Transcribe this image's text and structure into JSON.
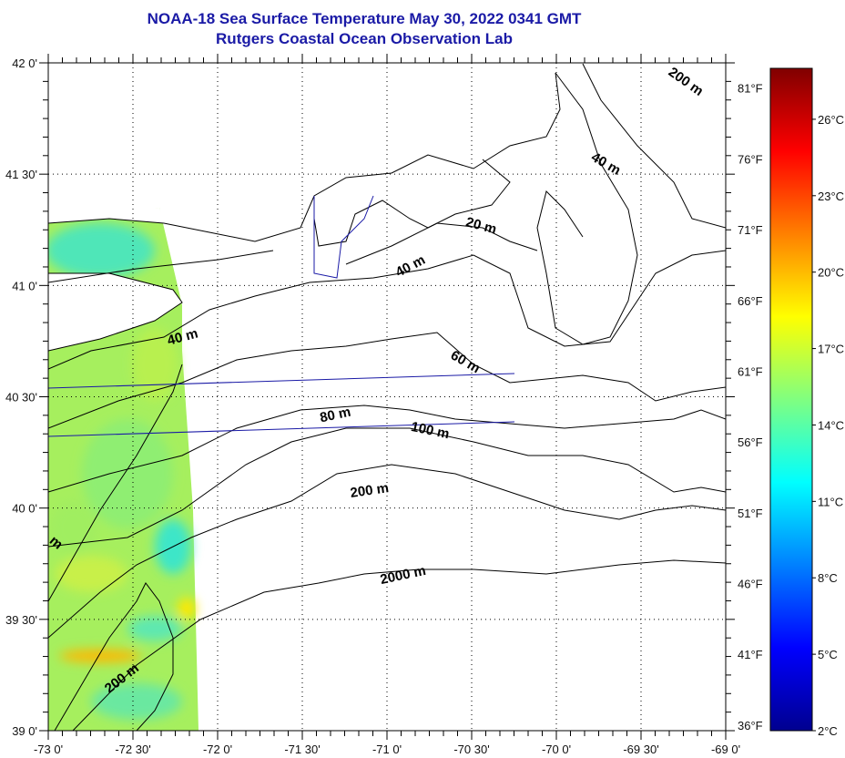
{
  "title": {
    "line1": "NOAA-18 Sea Surface Temperature May 30, 2022 0341 GMT",
    "line2": "Rutgers Coastal Ocean Observation Lab"
  },
  "map": {
    "lon_range": [
      -73,
      -69
    ],
    "lat_range": [
      39,
      42
    ],
    "lon_ticks": [
      {
        "value": -73,
        "label": "-73 0'"
      },
      {
        "value": -72.5,
        "label": "-72 30'"
      },
      {
        "value": -72,
        "label": "-72 0'"
      },
      {
        "value": -71.5,
        "label": "-71 30'"
      },
      {
        "value": -71,
        "label": "-71 0'"
      },
      {
        "value": -70.5,
        "label": "-70 30'"
      },
      {
        "value": -70,
        "label": "-70 0'"
      },
      {
        "value": -69.5,
        "label": "-69 30'"
      },
      {
        "value": -69,
        "label": "-69 0'"
      }
    ],
    "lat_ticks": [
      {
        "value": 42,
        "label": "42 0'"
      },
      {
        "value": 41.5,
        "label": "41 30'"
      },
      {
        "value": 41,
        "label": "41 0'"
      },
      {
        "value": 40.5,
        "label": "40 30'"
      },
      {
        "value": 40,
        "label": "40 0'"
      },
      {
        "value": 39.5,
        "label": "39 30'"
      },
      {
        "value": 39,
        "label": "39 0'"
      }
    ],
    "contour_labels": [
      {
        "text": "200 m",
        "lon": -69.25,
        "lat": 41.9,
        "rot": 35
      },
      {
        "text": "40 m",
        "lon": -69.72,
        "lat": 41.53,
        "rot": 30
      },
      {
        "text": "20 m",
        "lon": -70.45,
        "lat": 41.25,
        "rot": 15
      },
      {
        "text": "40 m",
        "lon": -70.85,
        "lat": 41.07,
        "rot": -28
      },
      {
        "text": "40 m",
        "lon": -72.2,
        "lat": 40.75,
        "rot": -15
      },
      {
        "text": "60 m",
        "lon": -70.55,
        "lat": 40.64,
        "rot": 30
      },
      {
        "text": "80 m",
        "lon": -71.3,
        "lat": 40.4,
        "rot": -12
      },
      {
        "text": "100 m",
        "lon": -70.75,
        "lat": 40.33,
        "rot": 12
      },
      {
        "text": "200 m",
        "lon": -71.1,
        "lat": 40.06,
        "rot": -8
      },
      {
        "text": "2000 m",
        "lon": -70.9,
        "lat": 39.68,
        "rot": -12
      },
      {
        "text": "200 m",
        "lon": -72.55,
        "lat": 39.22,
        "rot": -38
      },
      {
        "text": "m",
        "lon": -72.97,
        "lat": 39.83,
        "rot": 40
      }
    ]
  },
  "colorbar": {
    "celsius_range": [
      2,
      28
    ],
    "celsius_ticks": [
      "26°C",
      "23°C",
      "20°C",
      "17°C",
      "14°C",
      "11°C",
      "8°C",
      "5°C",
      "2°C"
    ],
    "celsius_values": [
      26,
      23,
      20,
      17,
      14,
      11,
      8,
      5,
      2
    ],
    "fahrenheit_ticks": [
      "81°F",
      "76°F",
      "71°F",
      "66°F",
      "61°F",
      "56°F",
      "51°F",
      "46°F",
      "41°F",
      "36°F"
    ],
    "fahrenheit_values": [
      81,
      76,
      71,
      66,
      61,
      56,
      51,
      46,
      41,
      36
    ],
    "colors": [
      "#00008f",
      "#0000ff",
      "#0080ff",
      "#00ffff",
      "#80ff80",
      "#ffff00",
      "#ff8000",
      "#ff0000",
      "#800000"
    ]
  }
}
